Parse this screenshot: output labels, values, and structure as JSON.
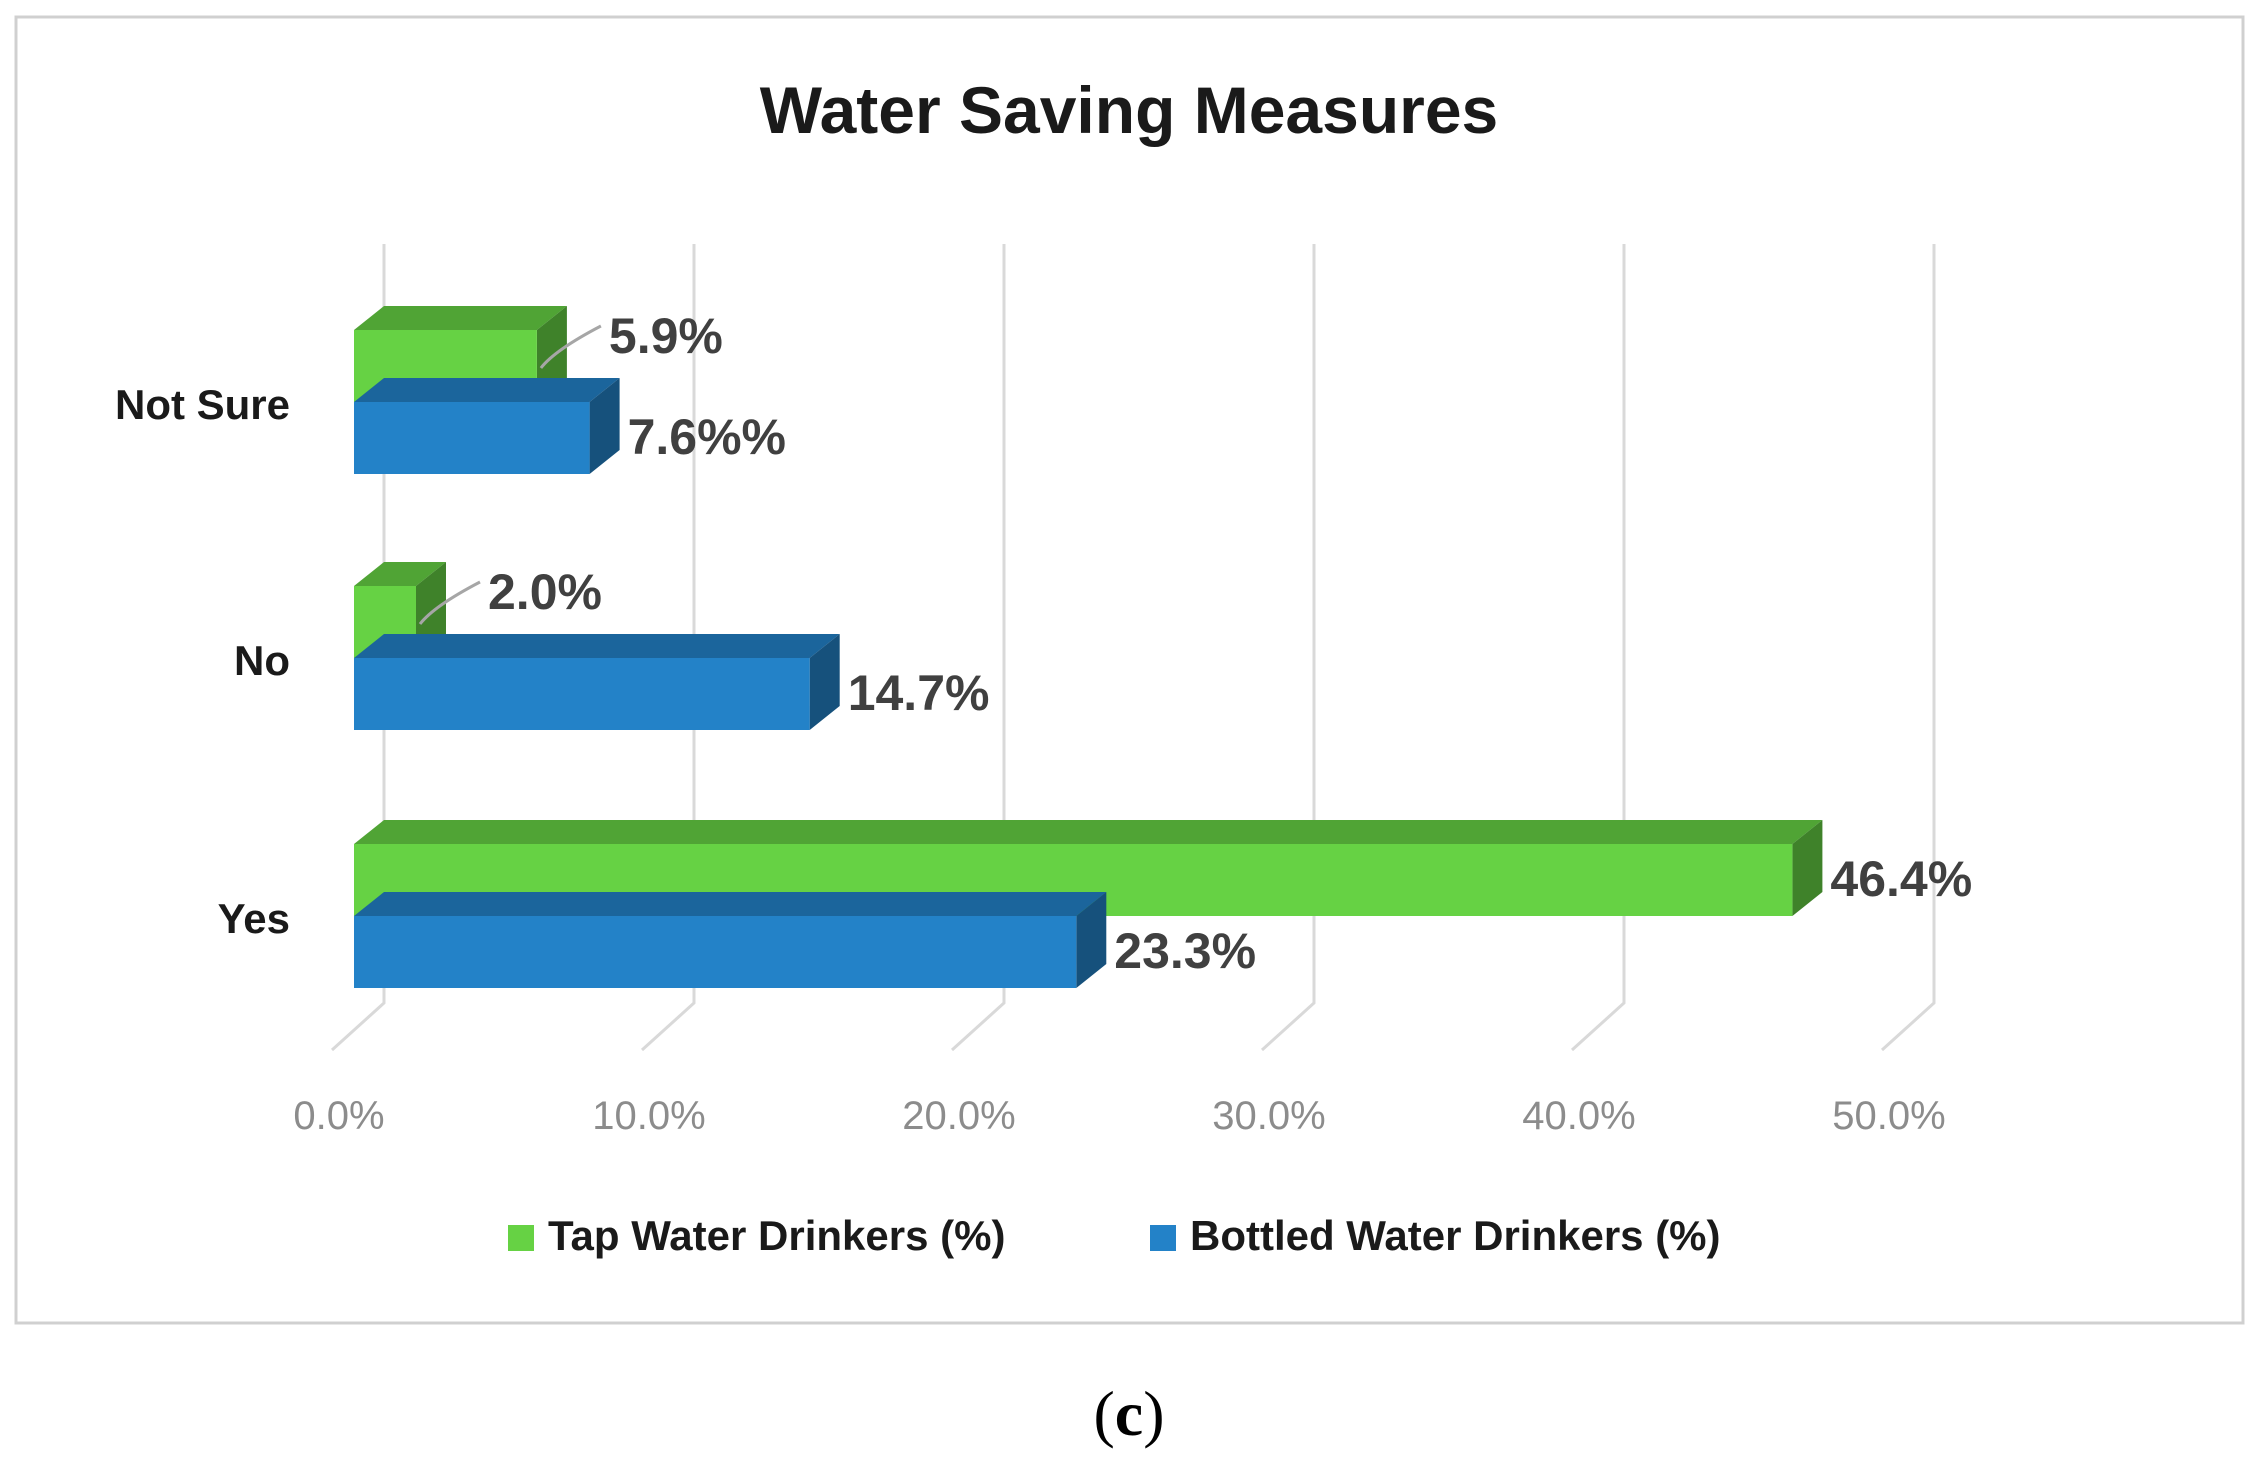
{
  "chart_data": {
    "type": "bar",
    "orientation": "horizontal",
    "style": "3d",
    "title": "Water Saving Measures",
    "categories": [
      "Yes",
      "No",
      "Not Sure"
    ],
    "series": [
      {
        "name": "Tap Water Drinkers (%)",
        "color": "#66d244",
        "values": [
          46.4,
          2.0,
          5.9
        ],
        "labels": [
          "46.4%",
          "2.0%",
          "5.9%"
        ]
      },
      {
        "name": "Bottled Water Drinkers (%)",
        "color": "#2382c8",
        "values": [
          23.3,
          14.7,
          7.6
        ],
        "labels": [
          "23.3%",
          "14.7%",
          "7.6%%"
        ]
      }
    ],
    "xlim": [
      0,
      50
    ],
    "xticks": [
      0,
      10,
      20,
      30,
      40,
      50
    ],
    "xtick_labels": [
      "0.0%",
      "10.0%",
      "20.0%",
      "30.0%",
      "40.0%",
      "50.0%"
    ],
    "grid": true,
    "legend_position": "bottom"
  },
  "caption": {
    "open": "(",
    "letter": "c",
    "close": ")"
  }
}
